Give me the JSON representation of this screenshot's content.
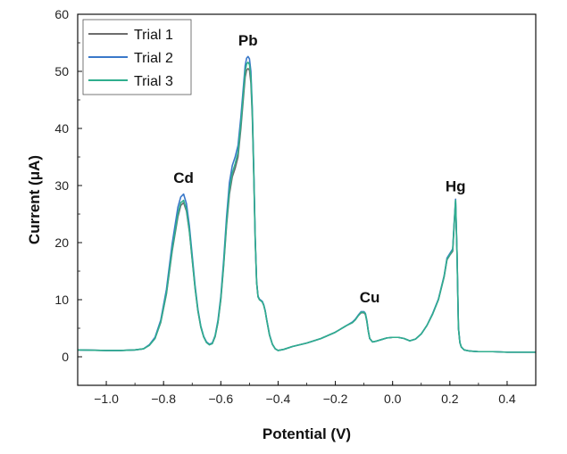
{
  "chart_data": {
    "type": "line",
    "title": "",
    "xlabel": "Potential (V)",
    "ylabel": "Current (μA)",
    "xlim": [
      -1.1,
      0.5
    ],
    "ylim": [
      -5,
      60
    ],
    "x_ticks": [
      -1.0,
      -0.8,
      -0.6,
      -0.4,
      -0.2,
      0.0,
      0.2,
      0.4
    ],
    "x_tick_labels": [
      "−1.0",
      "−0.8",
      "−0.6",
      "−0.4",
      "−0.2",
      "0.0",
      "0.2",
      "0.4"
    ],
    "y_ticks": [
      0,
      10,
      20,
      30,
      40,
      50,
      60
    ],
    "y_tick_labels": [
      "0",
      "10",
      "20",
      "30",
      "40",
      "50",
      "60"
    ],
    "grid": false,
    "legend_position": "top-left",
    "annotations": [
      {
        "text": "Cd",
        "x": -0.73,
        "y": 30.5
      },
      {
        "text": "Pb",
        "x": -0.505,
        "y": 54.5
      },
      {
        "text": "Cu",
        "x": -0.08,
        "y": 9.5
      },
      {
        "text": "Hg",
        "x": 0.22,
        "y": 29
      }
    ],
    "series": [
      {
        "name": "Trial 1",
        "color": "#6d6d6d",
        "x": [
          -1.1,
          -1.0,
          -0.95,
          -0.9,
          -0.87,
          -0.85,
          -0.83,
          -0.81,
          -0.79,
          -0.77,
          -0.75,
          -0.74,
          -0.73,
          -0.72,
          -0.71,
          -0.7,
          -0.69,
          -0.68,
          -0.67,
          -0.66,
          -0.65,
          -0.64,
          -0.63,
          -0.62,
          -0.61,
          -0.6,
          -0.59,
          -0.58,
          -0.57,
          -0.56,
          -0.55,
          -0.54,
          -0.53,
          -0.52,
          -0.515,
          -0.51,
          -0.505,
          -0.5,
          -0.495,
          -0.49,
          -0.485,
          -0.48,
          -0.475,
          -0.47,
          -0.465,
          -0.46,
          -0.455,
          -0.45,
          -0.445,
          -0.44,
          -0.43,
          -0.42,
          -0.41,
          -0.4,
          -0.38,
          -0.35,
          -0.3,
          -0.25,
          -0.2,
          -0.16,
          -0.14,
          -0.13,
          -0.12,
          -0.11,
          -0.1,
          -0.095,
          -0.09,
          -0.085,
          -0.08,
          -0.07,
          -0.06,
          -0.04,
          -0.02,
          0.0,
          0.02,
          0.04,
          0.06,
          0.08,
          0.1,
          0.12,
          0.14,
          0.16,
          0.18,
          0.19,
          0.2,
          0.21,
          0.215,
          0.22,
          0.225,
          0.23,
          0.235,
          0.24,
          0.25,
          0.27,
          0.3,
          0.35,
          0.4,
          0.45,
          0.5
        ],
        "y": [
          1.2,
          1.1,
          1.1,
          1.2,
          1.4,
          2.0,
          3.2,
          6.0,
          11.0,
          18.5,
          24.5,
          26.5,
          27.0,
          25.5,
          22.0,
          17.0,
          12.0,
          8.0,
          5.2,
          3.5,
          2.5,
          2.1,
          2.3,
          3.5,
          6.0,
          10.0,
          16.0,
          23.0,
          28.5,
          31.5,
          33.0,
          35.0,
          40.0,
          46.0,
          49.0,
          50.2,
          50.5,
          50.2,
          48.0,
          42.0,
          32.0,
          20.5,
          13.0,
          10.5,
          10.0,
          9.8,
          9.6,
          9.0,
          8.0,
          6.5,
          3.8,
          2.2,
          1.4,
          1.1,
          1.3,
          1.8,
          2.4,
          3.2,
          4.3,
          5.5,
          6.0,
          6.5,
          7.2,
          7.7,
          7.7,
          7.4,
          6.2,
          4.5,
          3.2,
          2.6,
          2.7,
          3.0,
          3.3,
          3.4,
          3.4,
          3.2,
          2.8,
          3.1,
          4.0,
          5.5,
          7.5,
          10.0,
          14.0,
          17.0,
          17.8,
          18.5,
          23.0,
          27.0,
          18.0,
          5.0,
          2.5,
          1.7,
          1.2,
          1.0,
          0.9,
          0.9,
          0.8,
          0.8,
          0.8
        ]
      },
      {
        "name": "Trial 2",
        "color": "#3a78c9",
        "x": [
          -1.1,
          -1.0,
          -0.95,
          -0.9,
          -0.87,
          -0.85,
          -0.83,
          -0.81,
          -0.79,
          -0.77,
          -0.75,
          -0.74,
          -0.73,
          -0.72,
          -0.71,
          -0.7,
          -0.69,
          -0.68,
          -0.67,
          -0.66,
          -0.65,
          -0.64,
          -0.63,
          -0.62,
          -0.61,
          -0.6,
          -0.59,
          -0.58,
          -0.57,
          -0.56,
          -0.55,
          -0.54,
          -0.53,
          -0.52,
          -0.515,
          -0.51,
          -0.505,
          -0.5,
          -0.495,
          -0.49,
          -0.485,
          -0.48,
          -0.475,
          -0.47,
          -0.465,
          -0.46,
          -0.455,
          -0.45,
          -0.445,
          -0.44,
          -0.43,
          -0.42,
          -0.41,
          -0.4,
          -0.38,
          -0.35,
          -0.3,
          -0.25,
          -0.2,
          -0.16,
          -0.14,
          -0.13,
          -0.12,
          -0.11,
          -0.1,
          -0.095,
          -0.09,
          -0.085,
          -0.08,
          -0.07,
          -0.06,
          -0.04,
          -0.02,
          0.0,
          0.02,
          0.04,
          0.06,
          0.08,
          0.1,
          0.12,
          0.14,
          0.16,
          0.18,
          0.19,
          0.2,
          0.21,
          0.215,
          0.22,
          0.225,
          0.23,
          0.235,
          0.24,
          0.25,
          0.27,
          0.3,
          0.35,
          0.4,
          0.45,
          0.5
        ],
        "y": [
          1.2,
          1.1,
          1.1,
          1.2,
          1.4,
          2.1,
          3.4,
          6.4,
          11.8,
          19.8,
          26.2,
          28.0,
          28.5,
          26.8,
          23.0,
          17.8,
          12.5,
          8.3,
          5.4,
          3.6,
          2.6,
          2.2,
          2.4,
          3.7,
          6.4,
          10.6,
          17.0,
          24.5,
          30.5,
          33.5,
          35.0,
          37.0,
          42.0,
          48.0,
          51.0,
          52.3,
          52.6,
          52.2,
          50.0,
          43.5,
          33.0,
          21.0,
          13.2,
          10.6,
          10.1,
          9.9,
          9.7,
          9.1,
          8.1,
          6.6,
          3.9,
          2.2,
          1.4,
          1.1,
          1.3,
          1.8,
          2.4,
          3.2,
          4.3,
          5.5,
          6.1,
          6.6,
          7.3,
          7.9,
          7.9,
          7.6,
          6.4,
          4.6,
          3.2,
          2.6,
          2.7,
          3.0,
          3.3,
          3.4,
          3.4,
          3.2,
          2.8,
          3.1,
          4.0,
          5.5,
          7.6,
          10.1,
          14.2,
          17.3,
          18.1,
          18.9,
          23.5,
          27.6,
          18.3,
          5.1,
          2.5,
          1.7,
          1.2,
          1.0,
          0.9,
          0.9,
          0.8,
          0.8,
          0.8
        ]
      },
      {
        "name": "Trial 3",
        "color": "#2fae8e",
        "x": [
          -1.1,
          -1.0,
          -0.95,
          -0.9,
          -0.87,
          -0.85,
          -0.83,
          -0.81,
          -0.79,
          -0.77,
          -0.75,
          -0.74,
          -0.73,
          -0.72,
          -0.71,
          -0.7,
          -0.69,
          -0.68,
          -0.67,
          -0.66,
          -0.65,
          -0.64,
          -0.63,
          -0.62,
          -0.61,
          -0.6,
          -0.59,
          -0.58,
          -0.57,
          -0.56,
          -0.55,
          -0.54,
          -0.53,
          -0.52,
          -0.515,
          -0.51,
          -0.505,
          -0.5,
          -0.495,
          -0.49,
          -0.485,
          -0.48,
          -0.475,
          -0.47,
          -0.465,
          -0.46,
          -0.455,
          -0.45,
          -0.445,
          -0.44,
          -0.43,
          -0.42,
          -0.41,
          -0.4,
          -0.38,
          -0.35,
          -0.3,
          -0.25,
          -0.2,
          -0.16,
          -0.14,
          -0.13,
          -0.12,
          -0.11,
          -0.1,
          -0.095,
          -0.09,
          -0.085,
          -0.08,
          -0.07,
          -0.06,
          -0.04,
          -0.02,
          0.0,
          0.02,
          0.04,
          0.06,
          0.08,
          0.1,
          0.12,
          0.14,
          0.16,
          0.18,
          0.19,
          0.2,
          0.21,
          0.215,
          0.22,
          0.225,
          0.23,
          0.235,
          0.24,
          0.25,
          0.27,
          0.3,
          0.35,
          0.4,
          0.45,
          0.5
        ],
        "y": [
          1.2,
          1.1,
          1.1,
          1.2,
          1.4,
          2.0,
          3.2,
          6.1,
          11.2,
          18.8,
          25.0,
          27.0,
          27.4,
          25.8,
          22.2,
          17.2,
          12.1,
          8.1,
          5.3,
          3.5,
          2.5,
          2.1,
          2.3,
          3.6,
          6.1,
          10.2,
          16.3,
          23.5,
          29.2,
          32.2,
          33.8,
          35.8,
          40.8,
          47.0,
          50.0,
          51.3,
          51.6,
          51.2,
          49.0,
          42.8,
          32.5,
          20.8,
          13.1,
          10.5,
          10.0,
          9.8,
          9.6,
          9.0,
          8.0,
          6.5,
          3.8,
          2.2,
          1.4,
          1.1,
          1.3,
          1.8,
          2.4,
          3.2,
          4.3,
          5.5,
          6.0,
          6.5,
          7.2,
          7.8,
          7.8,
          7.5,
          6.3,
          4.5,
          3.2,
          2.6,
          2.7,
          3.0,
          3.3,
          3.4,
          3.4,
          3.2,
          2.8,
          3.1,
          4.0,
          5.5,
          7.5,
          10.0,
          14.1,
          17.1,
          17.9,
          18.7,
          23.2,
          27.4,
          18.1,
          5.0,
          2.5,
          1.7,
          1.2,
          1.0,
          0.9,
          0.9,
          0.8,
          0.8,
          0.8
        ]
      }
    ]
  }
}
